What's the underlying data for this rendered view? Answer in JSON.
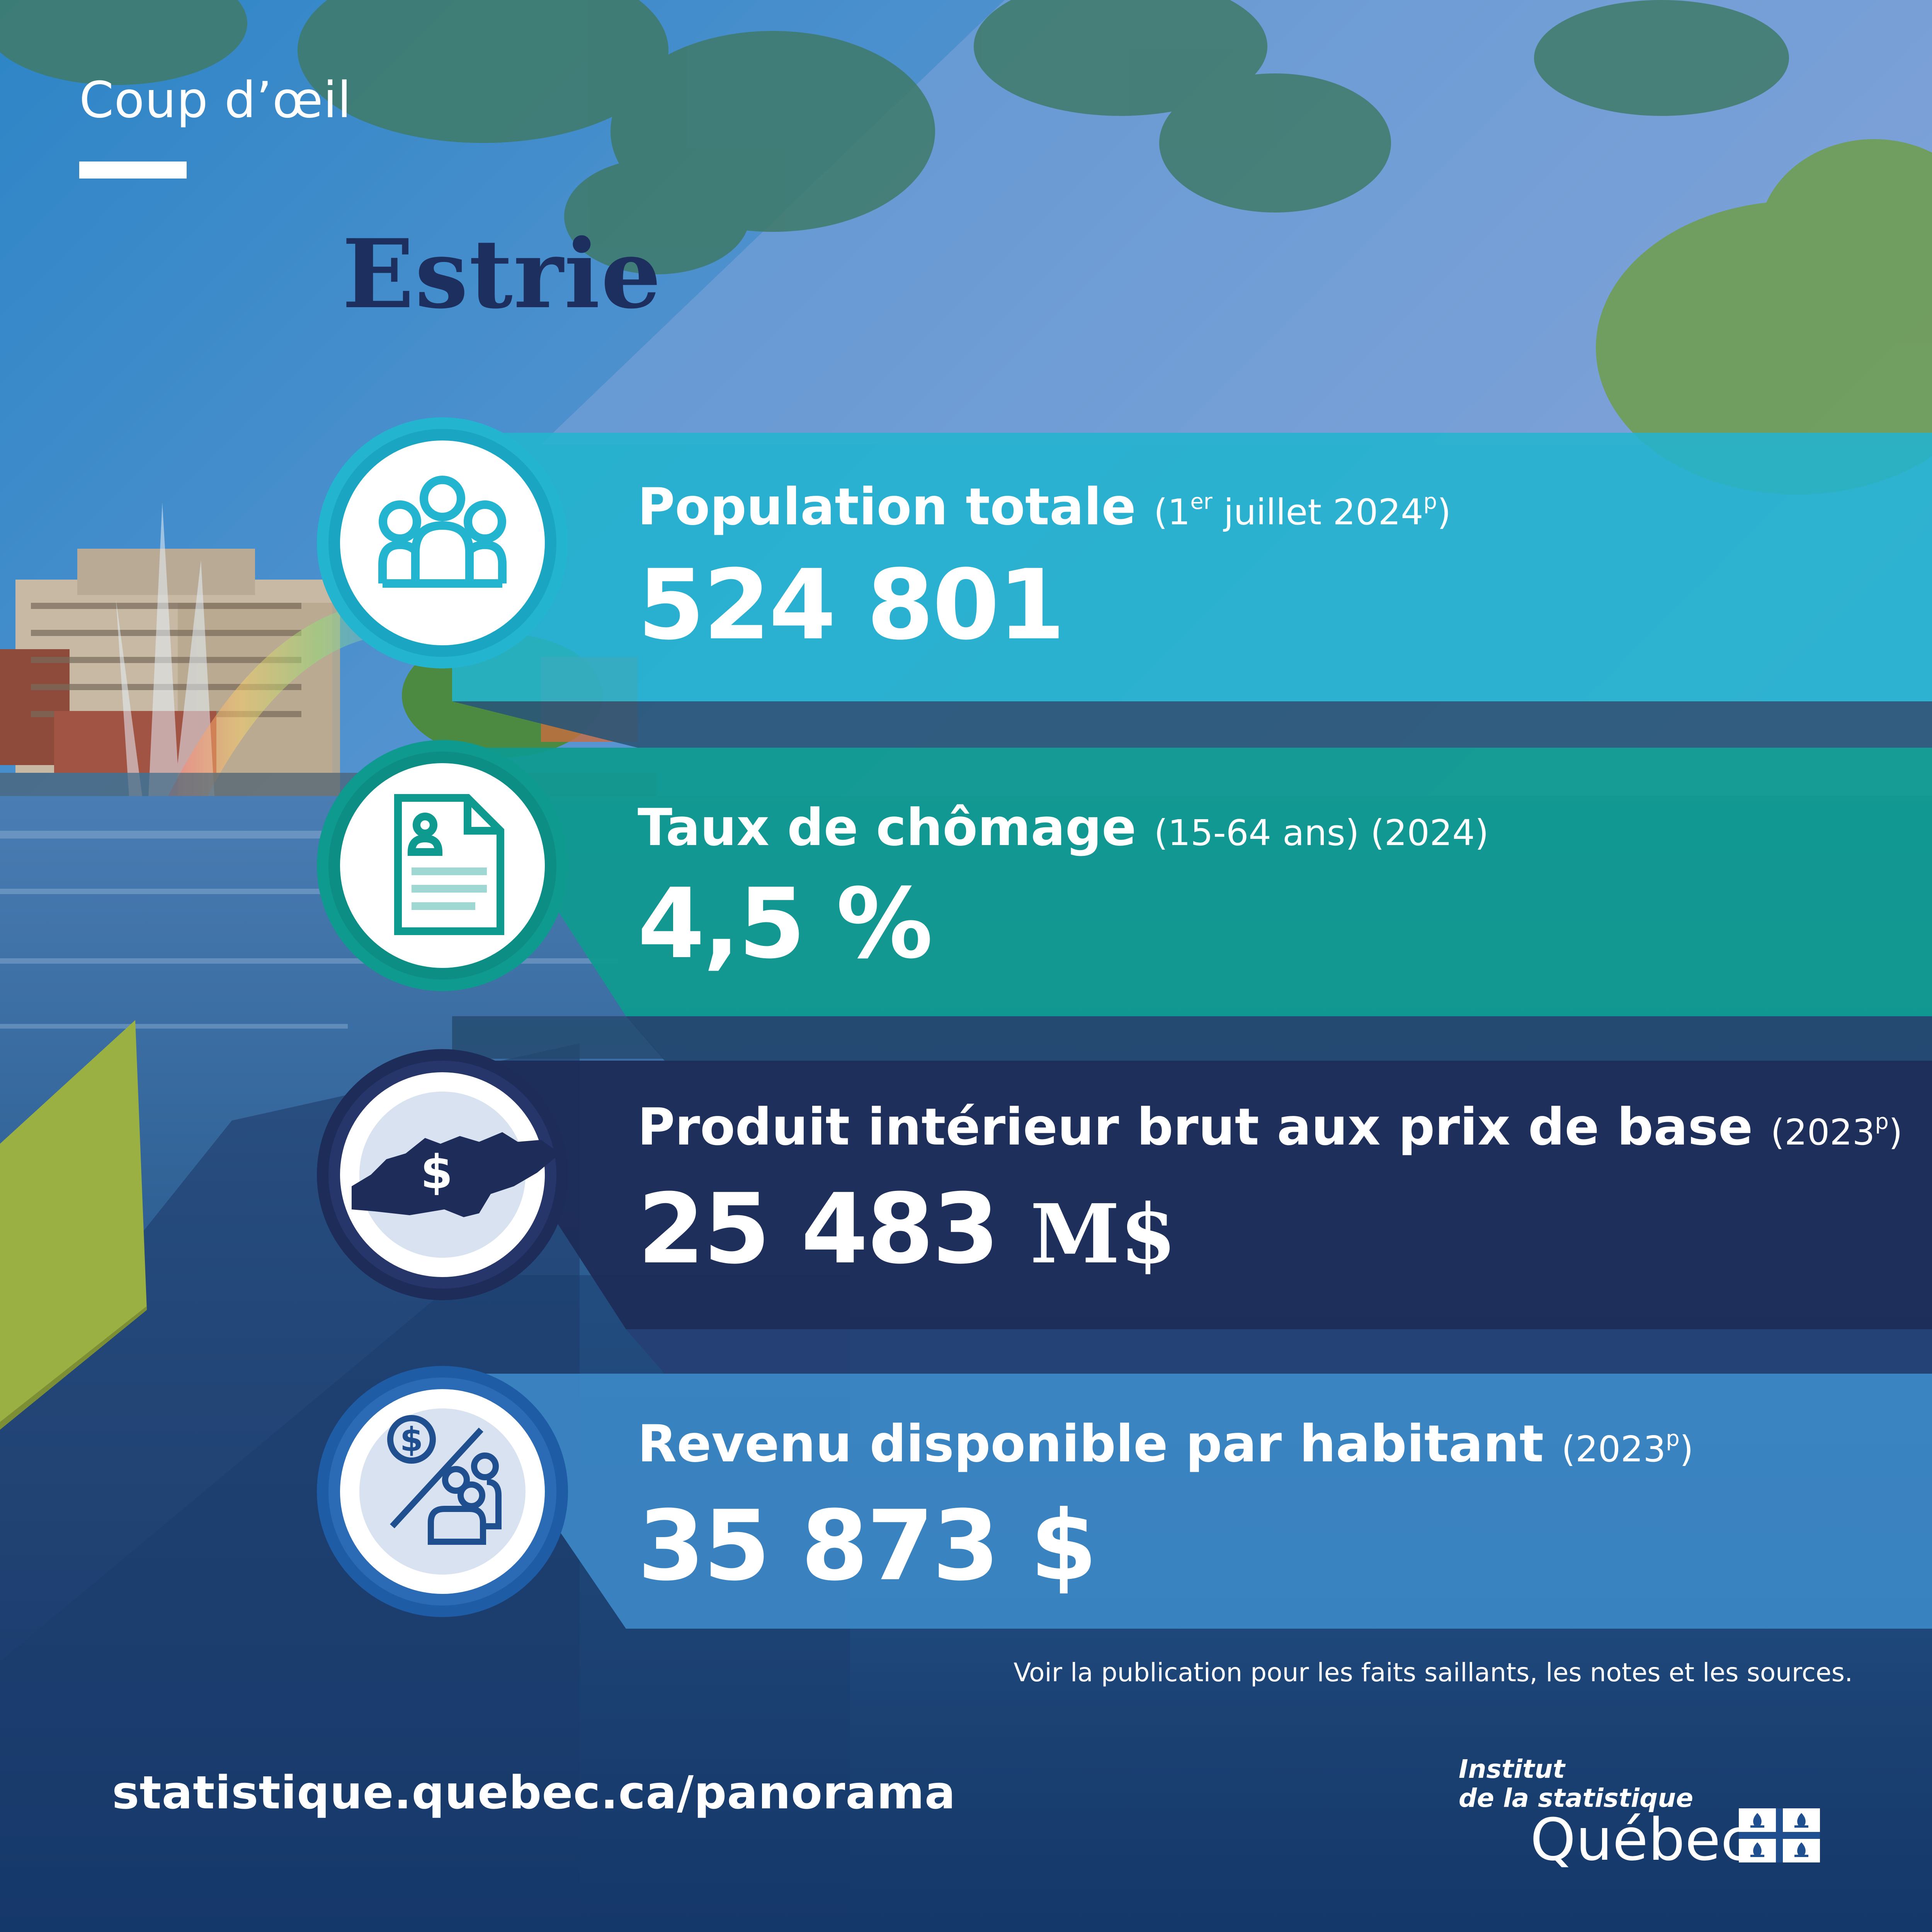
{
  "header": {
    "kicker": "Coup d’œil",
    "region": "Estrie"
  },
  "bands": [
    {
      "label": "Population totale",
      "qualifier_pre": "(1",
      "qualifier_sup": "er",
      "qualifier_mid": " juillet 2024",
      "qualifier_sup2": "p",
      "qualifier_post": ")",
      "value": "524 801",
      "unit": "",
      "icon": "people-group-icon",
      "color": "#23b4cf"
    },
    {
      "label": "Taux de chômage",
      "qualifier_pre": "(15-64 ans)  (2024)",
      "qualifier_sup": "",
      "qualifier_mid": "",
      "qualifier_sup2": "",
      "qualifier_post": "",
      "value": "4,5 %",
      "unit": "",
      "icon": "document-profile-icon",
      "color": "#0e9a8f"
    },
    {
      "label": "Produit intérieur brut aux prix de base",
      "qualifier_pre": "(2023",
      "qualifier_sup": "",
      "qualifier_mid": "",
      "qualifier_sup2": "p",
      "qualifier_post": ")",
      "value": "25 483",
      "unit": "M$",
      "icon": "region-map-dollar-icon",
      "color": "#1e2c59"
    },
    {
      "label": "Revenu disponible par habitant",
      "qualifier_pre": "(2023",
      "qualifier_sup": "",
      "qualifier_mid": "",
      "qualifier_sup2": "p",
      "qualifier_post": ")",
      "value": "35 873 $",
      "unit": "",
      "icon": "dollar-per-person-icon",
      "color": "#3c88c5"
    }
  ],
  "footer": {
    "note": "Voir la publication pour les faits saillants, les notes et les sources.",
    "website": "statistique.quebec.ca/panorama",
    "logo_line1": "Institut",
    "logo_line2": "de la statistique",
    "logo_line3": "Québec"
  },
  "colors": {
    "title": "#1d2f5e",
    "band_population": "#23b4cf",
    "band_chomage": "#0e9a8f",
    "band_pib": "#1e2c59",
    "band_revenu": "#3c88c5",
    "accent_yellow": "#9bb043"
  }
}
